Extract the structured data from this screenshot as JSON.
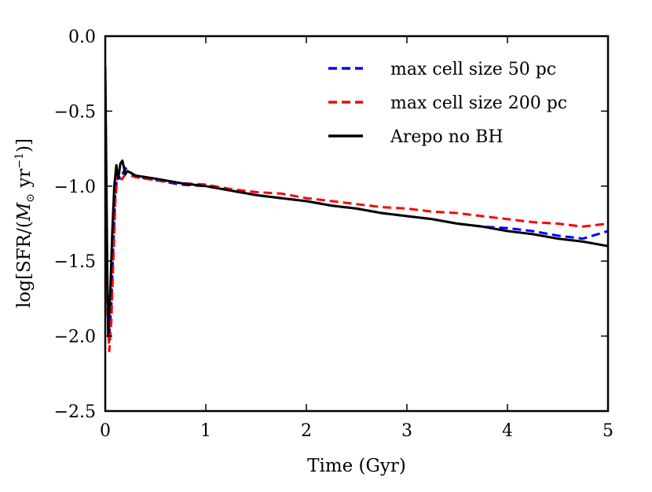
{
  "chart_data": {
    "type": "line",
    "xlabel": "Time (Gyr)",
    "ylabel_parts": {
      "prefix": "log[SFR/(",
      "m": "M",
      "sun": "⊙",
      "unit": " yr",
      "exp": "−1",
      "suffix": ")]"
    },
    "xlim": [
      0,
      5
    ],
    "ylim": [
      -2.5,
      0.0
    ],
    "x_ticks": [
      0,
      1,
      2,
      3,
      4,
      5
    ],
    "x_tick_labels": [
      "0",
      "1",
      "2",
      "3",
      "4",
      "5"
    ],
    "y_ticks": [
      0.0,
      -0.5,
      -1.0,
      -1.5,
      -2.0,
      -2.5
    ],
    "y_tick_labels": [
      "0.0",
      "−0.5",
      "−1.0",
      "−1.5",
      "−2.0",
      "−2.5"
    ],
    "grid": false,
    "legend_position": "top-right",
    "series": [
      {
        "name": "max cell size 50 pc",
        "color": "#0000ff",
        "style": "dashed",
        "x": [
          0.0,
          0.02,
          0.04,
          0.06,
          0.08,
          0.1,
          0.12,
          0.15,
          0.2,
          0.25,
          0.3,
          0.4,
          0.5,
          0.75,
          1.0,
          1.25,
          1.5,
          1.75,
          2.0,
          2.25,
          2.5,
          2.75,
          3.0,
          3.25,
          3.5,
          3.75,
          4.0,
          4.25,
          4.5,
          4.75,
          5.0
        ],
        "y": [
          -0.3,
          -1.7,
          -2.0,
          -1.8,
          -1.4,
          -1.05,
          -0.92,
          -0.95,
          -0.88,
          -0.91,
          -0.93,
          -0.95,
          -0.96,
          -0.99,
          -1.0,
          -1.03,
          -1.06,
          -1.08,
          -1.1,
          -1.13,
          -1.15,
          -1.18,
          -1.2,
          -1.22,
          -1.25,
          -1.27,
          -1.28,
          -1.3,
          -1.33,
          -1.35,
          -1.3
        ]
      },
      {
        "name": "max cell size 200 pc",
        "color": "#ff0000",
        "style": "dashed",
        "x": [
          0.0,
          0.02,
          0.04,
          0.06,
          0.08,
          0.1,
          0.12,
          0.15,
          0.2,
          0.25,
          0.3,
          0.4,
          0.5,
          0.75,
          1.0,
          1.25,
          1.5,
          1.75,
          2.0,
          2.25,
          2.5,
          2.75,
          3.0,
          3.25,
          3.5,
          3.75,
          4.0,
          4.25,
          4.5,
          4.75,
          5.0
        ],
        "y": [
          -0.3,
          -1.8,
          -2.1,
          -1.9,
          -1.5,
          -1.1,
          -0.93,
          -0.97,
          -0.92,
          -0.93,
          -0.94,
          -0.95,
          -0.96,
          -0.98,
          -0.99,
          -1.02,
          -1.04,
          -1.05,
          -1.08,
          -1.1,
          -1.12,
          -1.14,
          -1.15,
          -1.17,
          -1.18,
          -1.2,
          -1.22,
          -1.24,
          -1.25,
          -1.27,
          -1.25
        ]
      },
      {
        "name": "Arepo no BH",
        "color": "#000000",
        "style": "solid",
        "x": [
          0.0,
          0.02,
          0.03,
          0.05,
          0.07,
          0.09,
          0.11,
          0.13,
          0.15,
          0.17,
          0.2,
          0.22,
          0.25,
          0.3,
          0.4,
          0.5,
          0.75,
          1.0,
          1.25,
          1.5,
          1.75,
          2.0,
          2.25,
          2.5,
          2.75,
          3.0,
          3.25,
          3.5,
          3.75,
          4.0,
          4.25,
          4.5,
          4.75,
          5.0
        ],
        "y": [
          -0.2,
          -1.6,
          -2.0,
          -1.7,
          -1.3,
          -1.0,
          -0.86,
          -0.95,
          -0.85,
          -0.83,
          -0.92,
          -0.9,
          -0.91,
          -0.93,
          -0.94,
          -0.95,
          -0.98,
          -1.0,
          -1.03,
          -1.06,
          -1.08,
          -1.1,
          -1.13,
          -1.15,
          -1.18,
          -1.2,
          -1.22,
          -1.25,
          -1.27,
          -1.3,
          -1.32,
          -1.35,
          -1.37,
          -1.4
        ]
      }
    ]
  }
}
